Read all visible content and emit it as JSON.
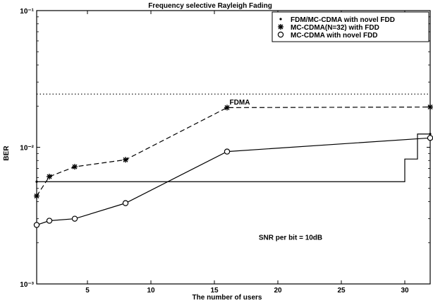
{
  "chart_data": {
    "type": "line",
    "title": "Frequency selective Rayleigh Fading",
    "xlabel": "The number of users",
    "ylabel": "BER",
    "xlim": [
      1,
      32
    ],
    "ylim": [
      0.001,
      0.1
    ],
    "yscale": "log",
    "grid": false,
    "legend_position": "top-right",
    "x_ticks": [
      5,
      10,
      15,
      20,
      25,
      30
    ],
    "x_tick_labels": [
      "5",
      "10",
      "15",
      "20",
      "25",
      "30"
    ],
    "y_ticks": [
      0.001,
      0.01,
      0.1
    ],
    "y_tick_labels": [
      "10⁻³",
      "10⁻²",
      "10⁻¹"
    ],
    "series": [
      {
        "name": "FDM/MC-CDMA with novel FDD",
        "style": "solid-step",
        "marker": "dot",
        "x": [
          1,
          30,
          30,
          31,
          31,
          32
        ],
        "y": [
          0.0056,
          0.0056,
          0.0082,
          0.0082,
          0.0125,
          0.0125
        ]
      },
      {
        "name": "MC-CDMA(N=32) with FDD",
        "style": "dashed",
        "marker": "star",
        "x": [
          1,
          2,
          4,
          8,
          16,
          32
        ],
        "y": [
          0.0044,
          0.0061,
          0.0072,
          0.0081,
          0.0195,
          0.0197
        ]
      },
      {
        "name": "MC-CDMA with novel FDD",
        "style": "solid",
        "marker": "circle",
        "x": [
          1,
          2,
          4,
          8,
          16,
          32
        ],
        "y": [
          0.0027,
          0.0029,
          0.003,
          0.0039,
          0.0093,
          0.0117
        ]
      },
      {
        "name": "FDMA",
        "style": "dotted",
        "marker": "none",
        "x": [
          1,
          32
        ],
        "y": [
          0.0245,
          0.0245
        ]
      }
    ],
    "annotations": [
      {
        "text": "FDMA",
        "x": 17,
        "y": 0.0205
      },
      {
        "text": "SNR per bit = 10dB",
        "x": 21,
        "y": 0.0021
      }
    ]
  }
}
